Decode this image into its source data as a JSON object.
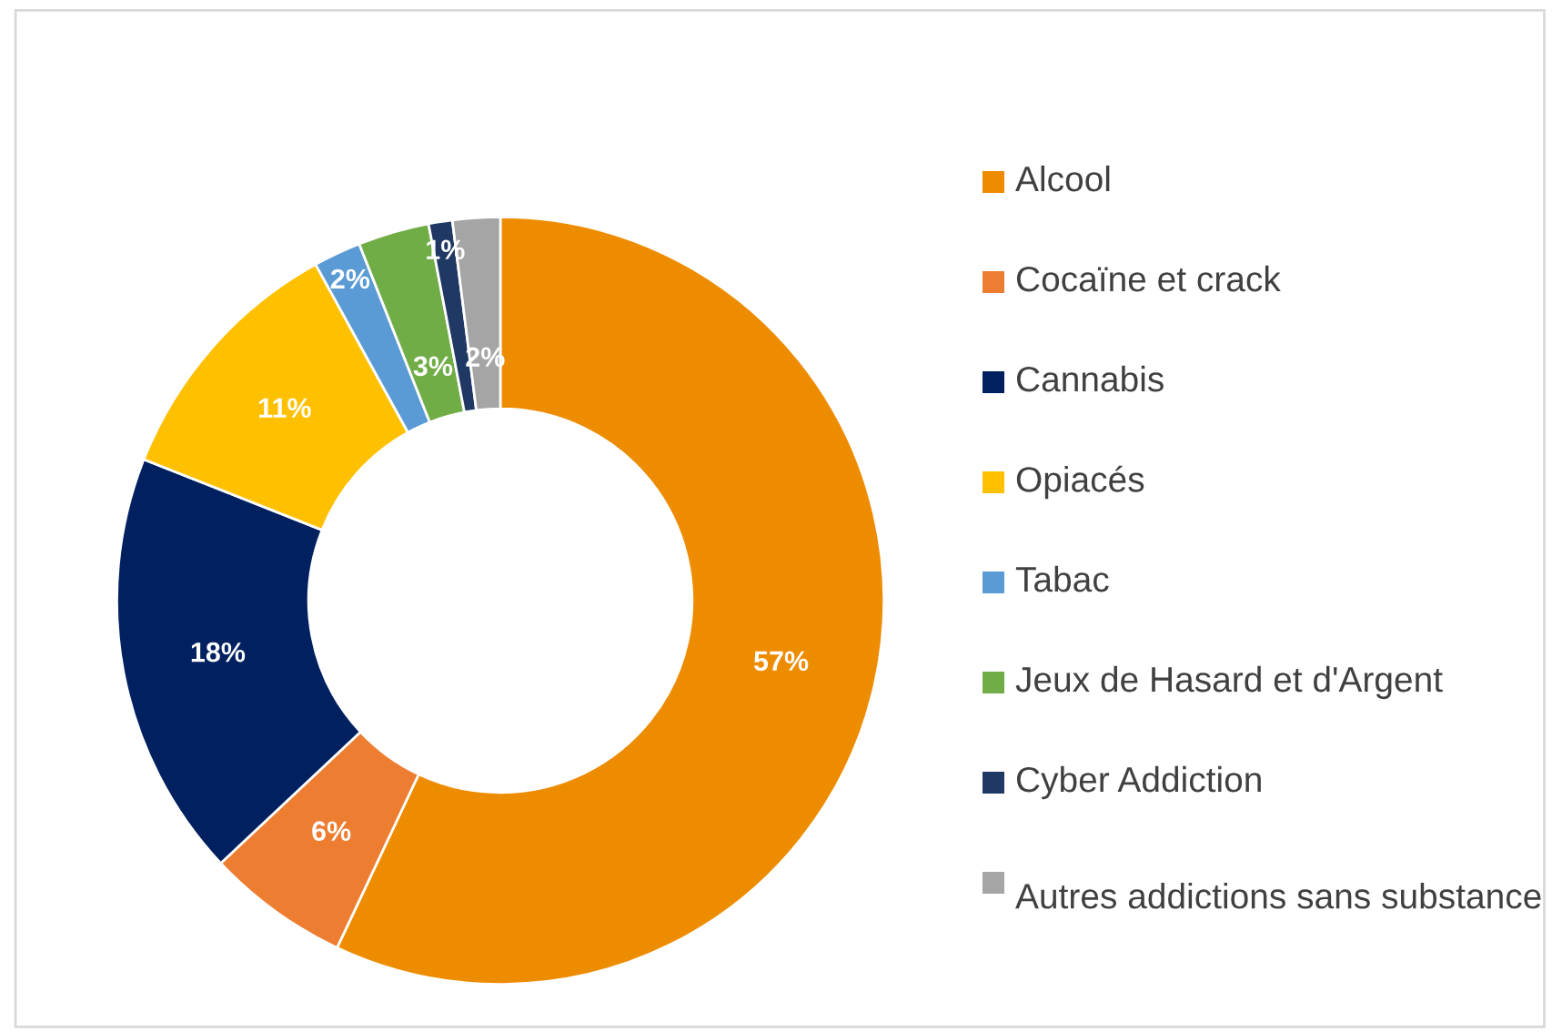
{
  "chart_data": {
    "type": "donut",
    "categories": [
      "Alcool",
      "Cocaïne et crack",
      "Cannabis",
      "Opiacés",
      "Tabac",
      "Jeux de Hasard et d'Argent",
      "Cyber Addiction",
      "Autres addictions sans substance"
    ],
    "values": [
      57,
      6,
      18,
      11,
      2,
      3,
      1,
      2
    ],
    "colors": [
      "#ee8c00",
      "#ed7d31",
      "#002060",
      "#ffc000",
      "#5b9bd5",
      "#70ad47",
      "#1f3864",
      "#a5a5a5"
    ],
    "value_labels": [
      "57%",
      "6%",
      "18%",
      "11%",
      "2%",
      "3%",
      "1%",
      "2%"
    ],
    "legend": "right"
  }
}
